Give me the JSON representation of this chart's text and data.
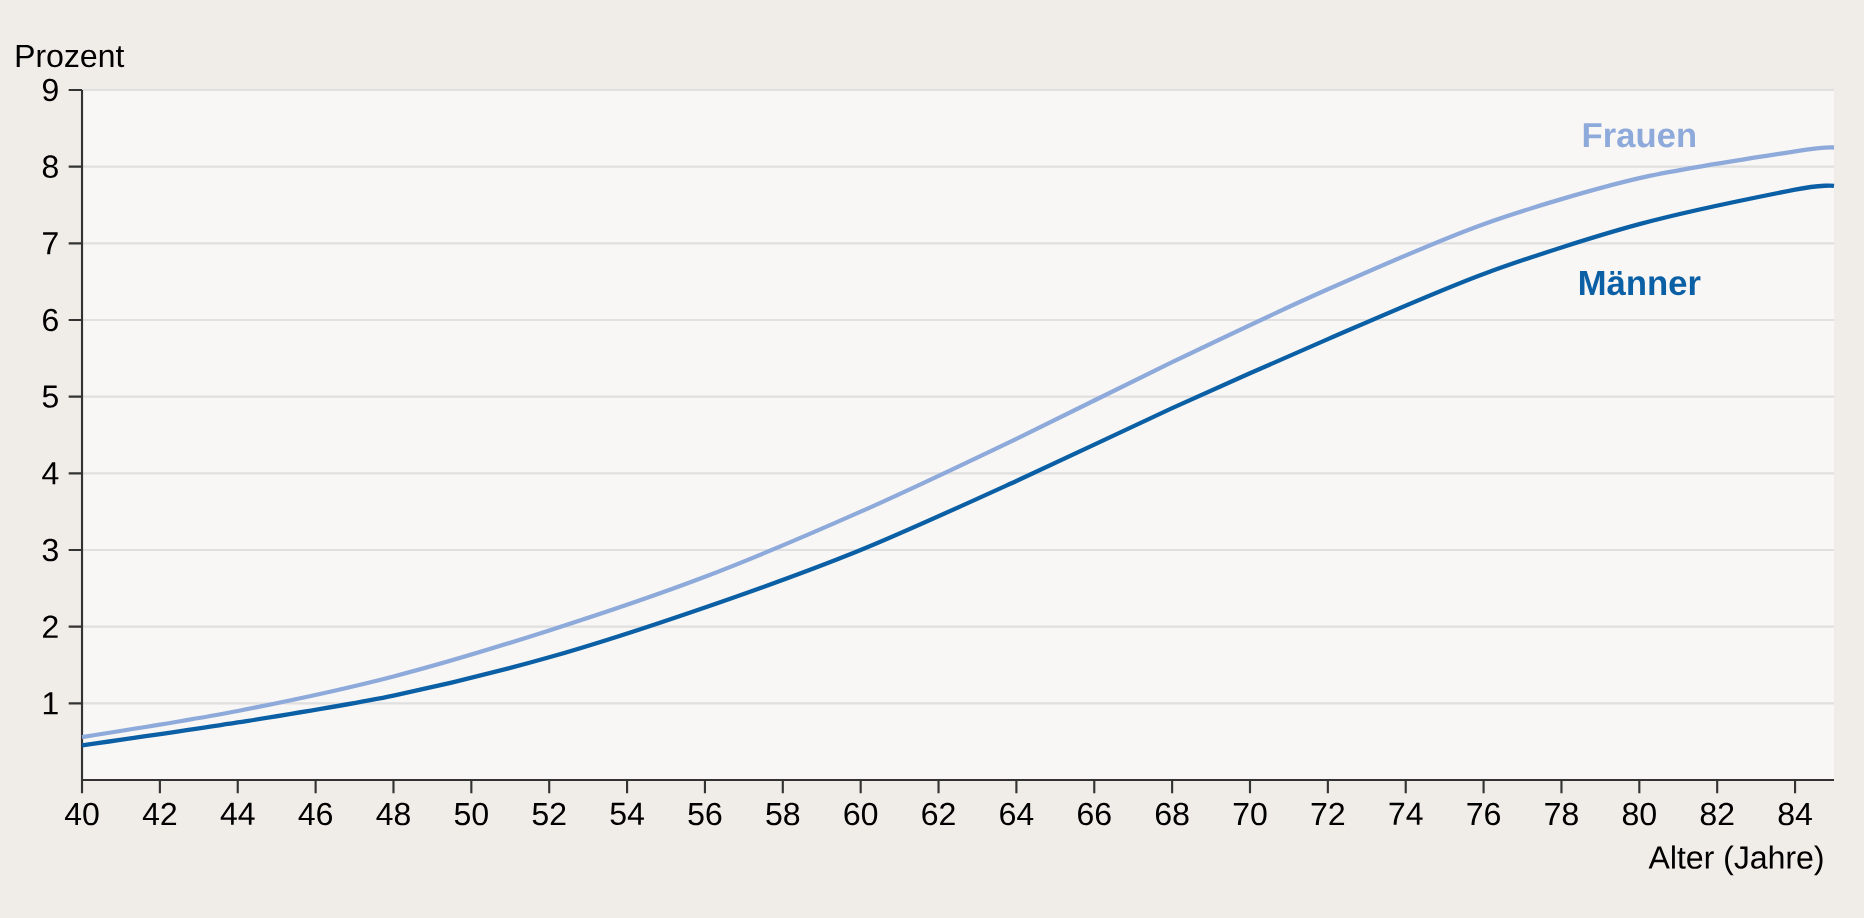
{
  "chart_data": {
    "type": "line",
    "xlabel": "Alter (Jahre)",
    "ylabel": "Prozent",
    "x": [
      40,
      44,
      48,
      52,
      56,
      60,
      64,
      68,
      72,
      76,
      80,
      84,
      85
    ],
    "series": [
      {
        "name": "Frauen",
        "color": "#8eaadb",
        "values": [
          0.56,
          0.9,
          1.35,
          1.95,
          2.65,
          3.5,
          4.45,
          5.45,
          6.4,
          7.25,
          7.85,
          8.2,
          8.25
        ]
      },
      {
        "name": "Männer",
        "color": "#0a5fa5",
        "values": [
          0.45,
          0.75,
          1.1,
          1.6,
          2.25,
          3.0,
          3.9,
          4.85,
          5.75,
          6.6,
          7.25,
          7.7,
          7.75
        ]
      }
    ],
    "xlim": [
      40,
      85
    ],
    "ylim": [
      0,
      9
    ],
    "xticks": [
      40,
      42,
      44,
      46,
      48,
      50,
      52,
      54,
      56,
      58,
      60,
      62,
      64,
      66,
      68,
      70,
      72,
      74,
      76,
      78,
      80,
      82,
      84
    ],
    "yticks": [
      1,
      2,
      3,
      4,
      5,
      6,
      7,
      8,
      9
    ],
    "grid": "y",
    "marker": "none",
    "line_style": "solid"
  }
}
